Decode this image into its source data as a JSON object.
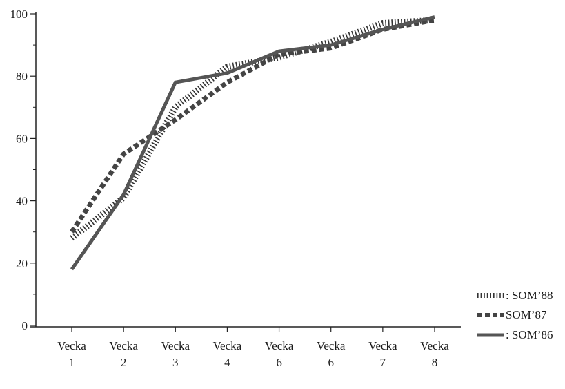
{
  "chart_data": {
    "type": "line",
    "categories": [
      [
        "Vecka",
        "1"
      ],
      [
        "Vecka",
        "2"
      ],
      [
        "Vecka",
        "3"
      ],
      [
        "Vecka",
        "4"
      ],
      [
        "Vecka",
        "6"
      ],
      [
        "Vecka",
        "6"
      ],
      [
        "Vecka",
        "7"
      ],
      [
        "Vecka",
        "8"
      ]
    ],
    "yticks": [
      "0",
      "20",
      "40",
      "60",
      "80",
      "100"
    ],
    "ylim": [
      0,
      100
    ],
    "grid": false,
    "legend_position": "bottom-right",
    "series": [
      {
        "name": ": SOM’88",
        "style": "dotted",
        "color": "#333333",
        "values": [
          28,
          41,
          70,
          83,
          86,
          91,
          97,
          98
        ]
      },
      {
        "name": "SOM’87",
        "style": "dashed",
        "color": "#444444",
        "values": [
          30,
          55,
          66,
          78,
          87,
          89,
          95,
          98
        ]
      },
      {
        "name": ": SOM’86",
        "style": "solid",
        "color": "#555555",
        "values": [
          18,
          42,
          78,
          81,
          88,
          90,
          95,
          99
        ]
      }
    ]
  }
}
